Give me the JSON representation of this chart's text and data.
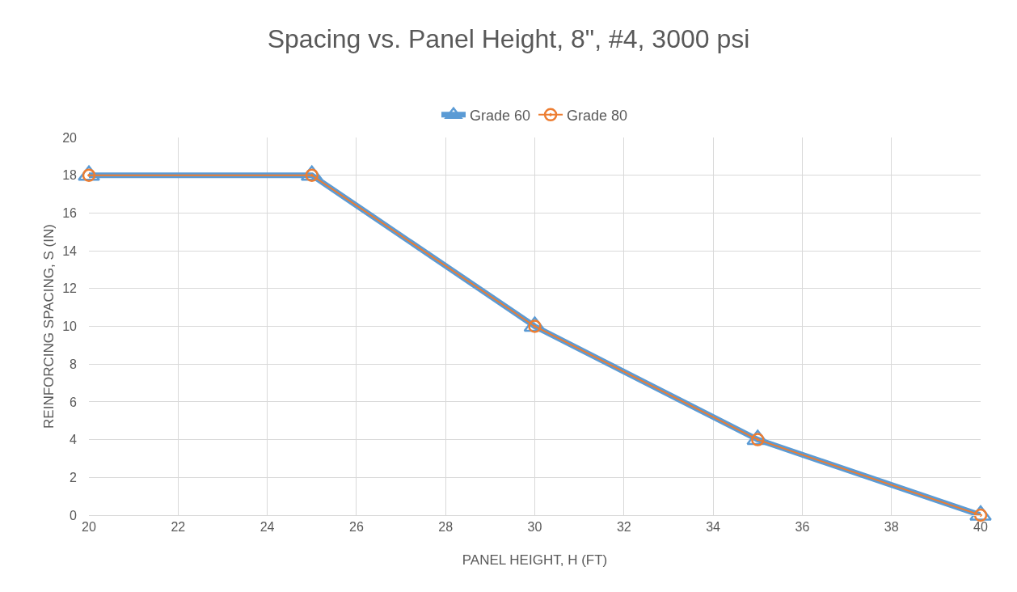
{
  "chart_data": {
    "type": "line",
    "title": "Spacing vs. Panel Height, 8\", #4, 3000 psi",
    "xlabel": "PANEL HEIGHT, H (FT)",
    "ylabel": "REINFORCING SPACING, S (IN)",
    "x": [
      20,
      25,
      30,
      35,
      40
    ],
    "series": [
      {
        "name": "Grade 60",
        "color": "#5b9bd5",
        "marker": "triangle",
        "values": [
          18,
          18,
          10,
          4,
          0
        ]
      },
      {
        "name": "Grade 80",
        "color": "#ed7d31",
        "marker": "circle",
        "values": [
          18,
          18,
          10,
          4,
          0
        ]
      }
    ],
    "xlim": [
      20,
      40
    ],
    "xticks": [
      20,
      22,
      24,
      26,
      28,
      30,
      32,
      34,
      36,
      38,
      40
    ],
    "ylim": [
      0,
      20
    ],
    "yticks": [
      0,
      2,
      4,
      6,
      8,
      10,
      12,
      14,
      16,
      18,
      20
    ],
    "grid": true,
    "legend": "top",
    "line_style": "solid"
  }
}
